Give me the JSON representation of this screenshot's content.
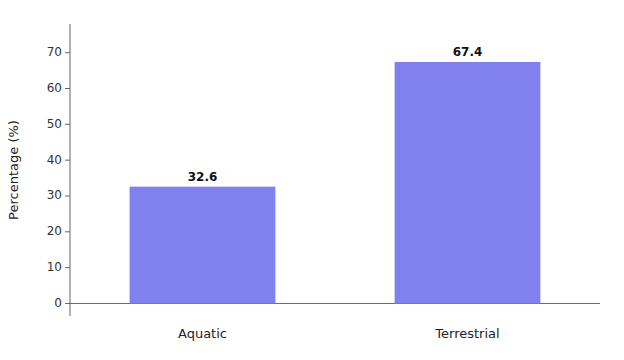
{
  "chart_data": {
    "type": "bar",
    "categories": [
      "Aquatic",
      "Terrestrial"
    ],
    "values": [
      32.6,
      67.4
    ],
    "color": "#8080EE",
    "ylabel": "Percentage (%)",
    "ylim": [
      -3.5,
      78
    ],
    "yticks": [
      0,
      10,
      20,
      30,
      40,
      50,
      60,
      70
    ],
    "data_labels": true
  }
}
